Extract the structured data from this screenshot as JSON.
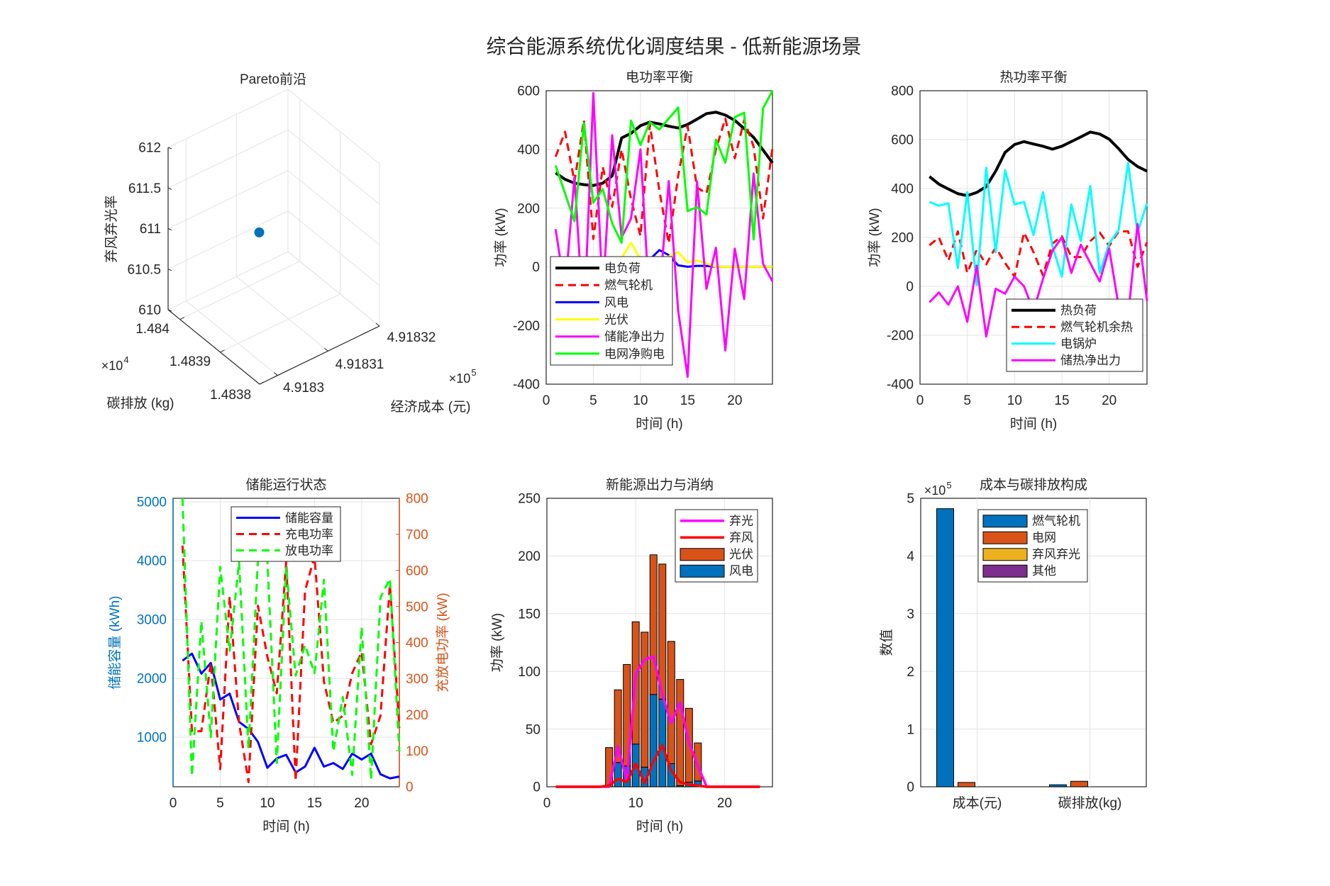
{
  "title": "综合能源系统优化调度结果 - 低新能源场景",
  "chart_data": [
    {
      "type": "scatter",
      "title": "Pareto前沿",
      "xlabel": "经济成本 (元)",
      "ylabel": "碳排放 (kg)",
      "zlabel": "弃风弃光率",
      "x_multiplier": "×10",
      "x_exp": "5",
      "y_multiplier": "×10",
      "y_exp": "4",
      "xticks": [
        "4.9183",
        "4.91831",
        "4.91832"
      ],
      "yticks": [
        "1.484",
        "1.4839",
        "1.4838"
      ],
      "zticks": [
        "610",
        "610.5",
        "611",
        "611.5",
        "612"
      ],
      "zlim": [
        610,
        612
      ],
      "points": [
        {
          "cost": 491830.71,
          "carbon": 14839.37,
          "rate": 611
        }
      ],
      "marker_color": "#0072BD"
    },
    {
      "type": "line",
      "title": "电功率平衡",
      "xlabel": "时间 (h)",
      "ylabel": "功率 (kW)",
      "xlim": [
        0,
        24
      ],
      "ylim": [
        -400,
        600
      ],
      "xticks": [
        0,
        5,
        10,
        15,
        20
      ],
      "yticks": [
        -400,
        -200,
        0,
        200,
        400,
        600
      ],
      "grid": true,
      "legend": "bottom-left",
      "x": [
        1,
        2,
        3,
        4,
        5,
        6,
        7,
        8,
        9,
        10,
        11,
        12,
        13,
        14,
        15,
        16,
        17,
        18,
        19,
        20,
        21,
        22,
        23,
        24
      ],
      "series": [
        {
          "name": "电负荷",
          "color": "#000000",
          "style": "solid",
          "values": [
            320,
            298,
            285,
            280,
            277,
            285,
            310,
            439,
            455,
            481,
            493,
            487,
            479,
            473,
            485,
            503,
            522,
            527,
            517,
            499,
            471,
            441,
            398,
            354
          ]
        },
        {
          "name": "燃气轮机",
          "color": "#FF0000",
          "style": "dashed",
          "values": [
            375,
            460,
            290,
            500,
            95,
            340,
            205,
            400,
            230,
            105,
            485,
            260,
            80,
            310,
            480,
            270,
            250,
            400,
            505,
            370,
            500,
            410,
            165,
            405
          ]
        },
        {
          "name": "风电",
          "color": "#0000FF",
          "style": "solid",
          "values": [
            0,
            0,
            0,
            0,
            0,
            0,
            0,
            5,
            20,
            15,
            25,
            57,
            40,
            5,
            0,
            3,
            3,
            0,
            0,
            0,
            0,
            0,
            0,
            0
          ]
        },
        {
          "name": "光伏",
          "color": "#FFFF00",
          "style": "solid",
          "values": [
            0,
            0,
            0,
            0,
            0,
            0,
            0,
            30,
            82,
            25,
            15,
            20,
            35,
            50,
            15,
            22,
            12,
            0,
            0,
            0,
            0,
            0,
            0,
            0
          ]
        },
        {
          "name": "储能净出力",
          "color": "#FF00FF",
          "style": "solid",
          "values": [
            128,
            -80,
            305,
            -200,
            592,
            -100,
            448,
            100,
            165,
            400,
            -150,
            -100,
            292,
            -150,
            -375,
            290,
            -75,
            65,
            -285,
            62,
            -110,
            318,
            10,
            -50
          ]
        },
        {
          "name": "电网净购电",
          "color": "#00FF00",
          "style": "solid",
          "values": [
            345,
            250,
            155,
            490,
            218,
            265,
            148,
            82,
            498,
            415,
            493,
            468,
            505,
            543,
            190,
            203,
            178,
            433,
            355,
            510,
            525,
            93,
            540,
            600
          ]
        }
      ]
    },
    {
      "type": "line",
      "title": "热功率平衡",
      "xlabel": "时间 (h)",
      "ylabel": "功率 (kW)",
      "xlim": [
        0,
        24
      ],
      "ylim": [
        -400,
        800
      ],
      "xticks": [
        0,
        5,
        10,
        15,
        20
      ],
      "yticks": [
        -400,
        -200,
        0,
        200,
        400,
        600,
        800
      ],
      "grid": true,
      "legend": "bottom-right",
      "x": [
        1,
        2,
        3,
        4,
        5,
        6,
        7,
        8,
        9,
        10,
        11,
        12,
        13,
        14,
        15,
        16,
        17,
        18,
        19,
        20,
        21,
        22,
        23,
        24
      ],
      "series": [
        {
          "name": "热负荷",
          "color": "#000000",
          "style": "solid",
          "values": [
            449,
            418,
            398,
            379,
            371,
            384,
            408,
            471,
            548,
            580,
            592,
            582,
            573,
            561,
            573,
            592,
            611,
            631,
            623,
            602,
            563,
            519,
            490,
            471
          ]
        },
        {
          "name": "燃气轮机余热",
          "color": "#FF0000",
          "style": "dashed",
          "values": [
            168,
            200,
            105,
            225,
            55,
            150,
            90,
            160,
            95,
            40,
            220,
            140,
            45,
            175,
            205,
            120,
            120,
            185,
            220,
            165,
            225,
            225,
            80,
            180
          ]
        },
        {
          "name": "电锅炉",
          "color": "#00FFFF",
          "style": "solid",
          "values": [
            345,
            330,
            340,
            75,
            385,
            5,
            485,
            140,
            475,
            335,
            345,
            210,
            385,
            165,
            40,
            335,
            185,
            410,
            55,
            175,
            230,
            505,
            220,
            340
          ]
        },
        {
          "name": "储热净出力",
          "color": "#FF00FF",
          "style": "solid",
          "values": [
            -65,
            -25,
            -75,
            0,
            -145,
            85,
            -205,
            -10,
            -30,
            40,
            0,
            -100,
            30,
            145,
            200,
            55,
            170,
            95,
            20,
            155,
            -80,
            -120,
            255,
            -60
          ]
        }
      ]
    },
    {
      "type": "line",
      "title": "储能运行状态",
      "xlabel": "时间 (h)",
      "ylabel_left": "储能容量 (kWh)",
      "ylabel_right": "充放电功率 (kW)",
      "xlim": [
        0,
        24
      ],
      "ylim_left": [
        157,
        5060
      ],
      "ylim_right": [
        0,
        800
      ],
      "xticks": [
        0,
        5,
        10,
        15,
        20
      ],
      "yticks_left": [
        1000,
        2000,
        3000,
        4000,
        5000
      ],
      "yticks_right": [
        0,
        100,
        200,
        300,
        400,
        500,
        600,
        700,
        800
      ],
      "left_color": "#0072BD",
      "right_color": "#D95319",
      "grid": true,
      "legend": "top",
      "x": [
        1,
        2,
        3,
        4,
        5,
        6,
        7,
        8,
        9,
        10,
        11,
        12,
        13,
        14,
        15,
        16,
        17,
        18,
        19,
        20,
        21,
        22,
        23,
        24
      ],
      "series": [
        {
          "name": "储能容量",
          "axis": "left",
          "color": "#0000FF",
          "style": "solid",
          "values": [
            2300,
            2420,
            2080,
            2260,
            1640,
            1740,
            1260,
            1140,
            920,
            480,
            640,
            700,
            400,
            500,
            820,
            500,
            560,
            460,
            720,
            620,
            720,
            370,
            300,
            330
          ]
        },
        {
          "name": "充电功率",
          "axis": "right",
          "color": "#FF0000",
          "style": "dashed",
          "values": [
            669,
            154,
            154,
            344,
            49,
            528,
            177,
            13,
            502,
            361,
            259,
            626,
            16,
            544,
            639,
            292,
            177,
            197,
            315,
            374,
            118,
            197,
            561,
            164
          ]
        },
        {
          "name": "放电功率",
          "axis": "right",
          "color": "#00FF00",
          "style": "dashed",
          "values": [
            800,
            30,
            459,
            138,
            610,
            377,
            623,
            105,
            630,
            630,
            66,
            610,
            308,
            393,
            315,
            574,
            98,
            249,
            33,
            443,
            20,
            525,
            577,
            98
          ]
        }
      ]
    },
    {
      "type": "bar",
      "title": "新能源出力与消纳",
      "xlabel": "时间 (h)",
      "ylabel": "功率 (kW)",
      "xlim": [
        0,
        25.4
      ],
      "ylim": [
        0,
        250
      ],
      "xticks": [
        0,
        10,
        20
      ],
      "yticks": [
        0,
        50,
        100,
        150,
        200,
        250
      ],
      "grid": true,
      "legend": "top-right",
      "stacked": true,
      "x": [
        1,
        2,
        3,
        4,
        5,
        6,
        7,
        8,
        9,
        10,
        11,
        12,
        13,
        14,
        15,
        16,
        17,
        18,
        19,
        20,
        21,
        22,
        23,
        24
      ],
      "bars": [
        {
          "name": "风电",
          "color": "#0072BD",
          "values": [
            0,
            0,
            0,
            0,
            0,
            0,
            0,
            21,
            18,
            37,
            17,
            80,
            76,
            20,
            1,
            4,
            5,
            0,
            0,
            0,
            0,
            0,
            0,
            0
          ]
        },
        {
          "name": "光伏",
          "color": "#D95319",
          "values": [
            0,
            0,
            0,
            0,
            0,
            0,
            34,
            63,
            88,
            106,
            117,
            121,
            117,
            106,
            92,
            64,
            33,
            0,
            0,
            0,
            0,
            0,
            0,
            0
          ]
        }
      ],
      "lines": [
        {
          "name": "弃光",
          "color": "#FF00FF",
          "values": [
            0,
            0,
            0,
            0,
            0,
            0,
            0,
            35,
            5,
            98,
            110,
            113,
            80,
            55,
            73,
            38,
            18,
            0,
            0,
            0,
            0,
            0,
            0,
            0
          ]
        },
        {
          "name": "弃风",
          "color": "#FF0000",
          "values": [
            0,
            0,
            0,
            0,
            0,
            0,
            1,
            7,
            4,
            20,
            3,
            22,
            36,
            14,
            4,
            2,
            1,
            0,
            0,
            0,
            0,
            0,
            0,
            0
          ]
        }
      ]
    },
    {
      "type": "bar",
      "title": "成本与碳排放构成",
      "xlabel": "",
      "ylabel": "数值",
      "y_multiplier": "×10",
      "y_exp": "5",
      "categories": [
        "成本(元)",
        "碳排放(kg)"
      ],
      "ylim": [
        0,
        500000
      ],
      "yticks": [
        0,
        1,
        2,
        3,
        4,
        5
      ],
      "grid": true,
      "legend": "top",
      "series": [
        {
          "name": "燃气轮机",
          "color": "#0072BD",
          "values": [
            482000,
            3500
          ]
        },
        {
          "name": "电网",
          "color": "#D95319",
          "values": [
            7500,
            9500
          ]
        },
        {
          "name": "弃风弃光",
          "color": "#EDB120",
          "values": [
            0,
            0
          ]
        },
        {
          "name": "其他",
          "color": "#7E2F8E",
          "values": [
            0,
            0
          ]
        }
      ]
    }
  ]
}
